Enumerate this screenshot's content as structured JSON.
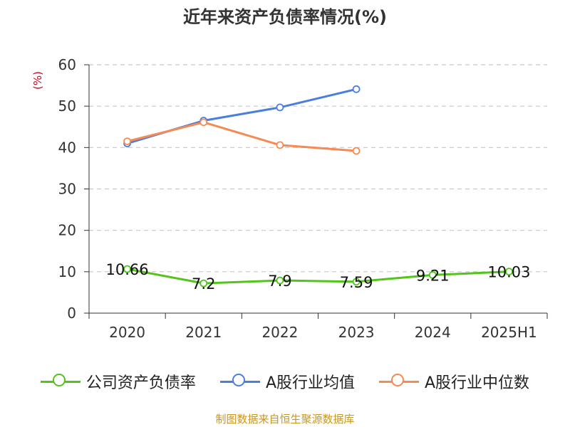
{
  "chart_data": {
    "type": "line",
    "title": "近年来资产负债率情况(%)",
    "ylabel": "(%)",
    "xlabel": "",
    "ylim": [
      0,
      60
    ],
    "yticks": [
      0,
      10,
      20,
      30,
      40,
      50,
      60
    ],
    "grid": true,
    "legend_position": "bottom",
    "categories": [
      "2020",
      "2021",
      "2022",
      "2023",
      "2024",
      "2025H1"
    ],
    "series": [
      {
        "name": "公司资产负债率",
        "color": "#52c41a",
        "values": [
          10.66,
          7.2,
          7.9,
          7.59,
          9.21,
          10.03
        ],
        "labels": true
      },
      {
        "name": "A股行业均值",
        "color": "#4a7fdc",
        "values": [
          41.0,
          46.5,
          49.7,
          54.1,
          null,
          null
        ],
        "labels": false
      },
      {
        "name": "A股行业中位数",
        "color": "#f58a55",
        "values": [
          41.5,
          46.1,
          40.6,
          39.2,
          null,
          null
        ],
        "labels": false
      }
    ]
  },
  "source": "制图数据来自恒生聚源数据库"
}
